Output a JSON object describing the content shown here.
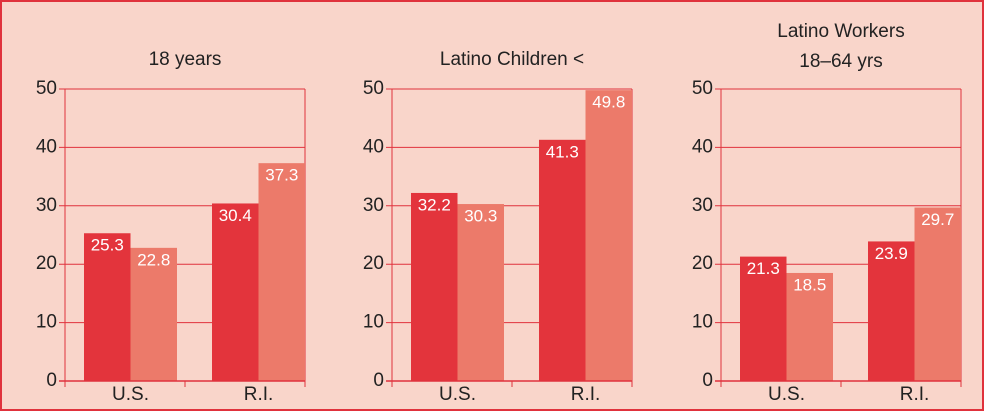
{
  "chart_data": [
    {
      "type": "bar",
      "title": "18 years",
      "categories": [
        "U.S.",
        "R.I."
      ],
      "series": [
        {
          "color": "#e3343c",
          "values": [
            25.3,
            30.4
          ]
        },
        {
          "color": "#ec7a6a",
          "values": [
            22.8,
            37.3
          ]
        }
      ],
      "ylim": [
        0,
        50
      ],
      "yticks": [
        0,
        10,
        20,
        30,
        40,
        50
      ],
      "grid": true
    },
    {
      "type": "bar",
      "title": "Latino Children <",
      "categories": [
        "U.S.",
        "R.I."
      ],
      "series": [
        {
          "color": "#e3343c",
          "values": [
            32.2,
            41.3
          ]
        },
        {
          "color": "#ec7a6a",
          "values": [
            30.3,
            49.8
          ]
        }
      ],
      "ylim": [
        0,
        50
      ],
      "yticks": [
        0,
        10,
        20,
        30,
        40,
        50
      ],
      "grid": true
    },
    {
      "type": "bar",
      "title": [
        "Latino Workers",
        "18–64 yrs"
      ],
      "categories": [
        "U.S.",
        "R.I."
      ],
      "series": [
        {
          "color": "#e3343c",
          "values": [
            21.3,
            23.9
          ]
        },
        {
          "color": "#ec7a6a",
          "values": [
            18.5,
            29.7
          ]
        }
      ],
      "ylim": [
        0,
        50
      ],
      "yticks": [
        0,
        10,
        20,
        30,
        40,
        50
      ],
      "grid": true
    }
  ]
}
